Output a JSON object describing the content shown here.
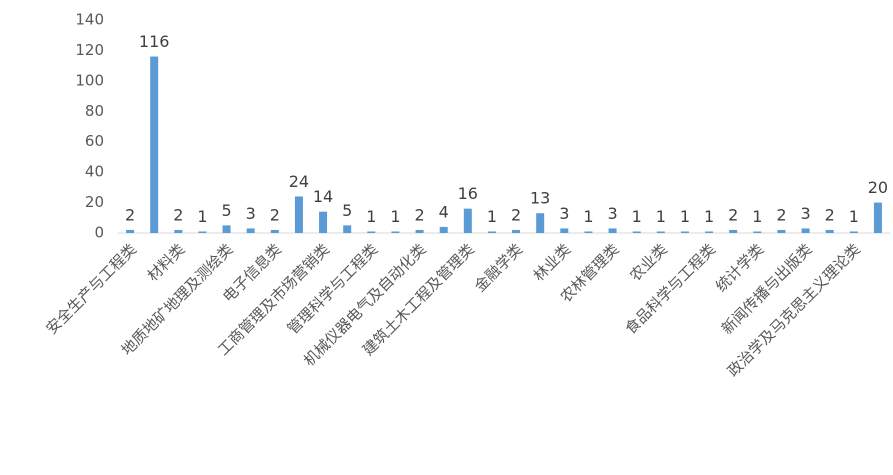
{
  "chart_data": {
    "type": "bar",
    "categories": [
      "安全生产与工程类",
      null,
      "材料类",
      null,
      "地质地矿地理及测绘类",
      null,
      "电子信息类",
      null,
      "工商管理及市场营销类",
      null,
      "管理科学与工程类",
      null,
      "机械仪器电气及自动化类",
      null,
      "建筑土木工程及管理类",
      null,
      "金融学类",
      null,
      "林业类",
      null,
      "农林管理类",
      null,
      "农业类",
      null,
      "食品科学与工程类",
      null,
      "统计学类",
      null,
      "新闻传播与出版类",
      null,
      "政治学及马克思主义理论类",
      null
    ],
    "values": [
      2,
      116,
      2,
      1,
      5,
      3,
      2,
      24,
      14,
      5,
      1,
      1,
      2,
      4,
      16,
      1,
      2,
      13,
      3,
      1,
      3,
      1,
      1,
      1,
      1,
      2,
      1,
      2,
      3,
      2,
      1,
      20
    ],
    "color": "#5b9bd5",
    "ylim": [
      0,
      140
    ],
    "yticks": [
      0,
      20,
      40,
      60,
      80,
      100,
      120,
      140
    ],
    "grid": false
  }
}
